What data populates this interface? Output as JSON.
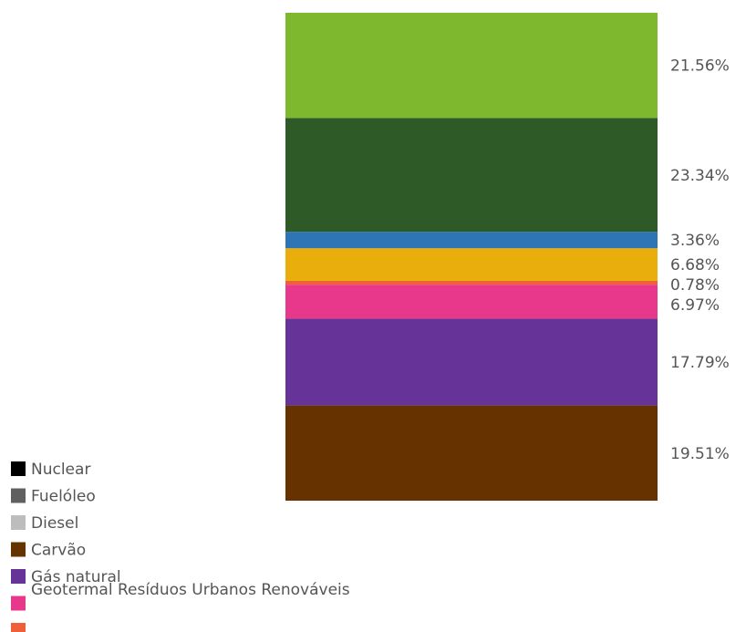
{
  "chart_data": {
    "type": "bar",
    "stacked": true,
    "series": [
      {
        "name": "Nuclear",
        "color": "#000000",
        "value": null
      },
      {
        "name": "Fuelóleo",
        "color": "#606060",
        "value": null
      },
      {
        "name": "Diesel",
        "color": "#bdbdbd",
        "value": null
      },
      {
        "name": "Carvão",
        "color": "#663300",
        "value": 19.51
      },
      {
        "name": "Gás natural",
        "color": "#663399",
        "value": 17.79
      },
      {
        "name": "",
        "color": "#e8388c",
        "value": 6.97
      },
      {
        "name": "",
        "color": "#ef5f3a",
        "value": 0.78
      },
      {
        "name": "",
        "color": "#e9ae0c",
        "value": 6.68
      },
      {
        "name": "",
        "color": "#2e75b6",
        "value": 3.36
      },
      {
        "name": "",
        "color": "#2d5a27",
        "value": 23.34
      },
      {
        "name": "",
        "color": "#7db82e",
        "value": 21.56
      }
    ],
    "labels": [
      "19.51%",
      "17.79%",
      "6.97%",
      "0.78%",
      "6.68%",
      "3.36%",
      "23.34%",
      "21.56%"
    ],
    "legend_overlap_text": "Geotermal Resíduos Urbanos Renováveis"
  }
}
